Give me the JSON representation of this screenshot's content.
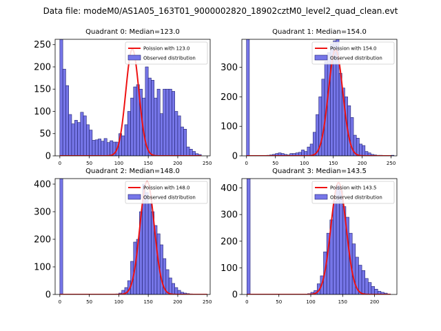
{
  "figure": {
    "title": "Data file: modeM0/AS1A05_163T01_9000002820_18902cztM0_level2_quad_clean.evt"
  },
  "colors": {
    "bar_fill": "#7676e8",
    "bar_edge": "#1f1f6e",
    "curve": "#ee1111",
    "axis": "#000000"
  },
  "chart_data": [
    {
      "type": "bar",
      "title": "Quadrant 0: Median=123.0",
      "legend": [
        "Poission with 123.0",
        "Observed distribution"
      ],
      "legend_position": "top-right",
      "xlim": [
        -8,
        255
      ],
      "ylim": [
        0,
        262
      ],
      "xticks": [
        0,
        50,
        100,
        150,
        200,
        250
      ],
      "yticks": [
        0,
        50,
        100,
        150,
        200,
        250
      ],
      "bin_width": 5,
      "bin_starts": [
        0,
        5,
        10,
        15,
        20,
        25,
        30,
        35,
        40,
        45,
        50,
        55,
        60,
        65,
        70,
        75,
        80,
        85,
        90,
        95,
        100,
        105,
        110,
        115,
        120,
        125,
        130,
        135,
        140,
        145,
        150,
        155,
        160,
        165,
        170,
        175,
        180,
        185,
        190,
        195,
        200,
        205,
        210,
        215,
        220,
        225,
        230,
        235
      ],
      "values": [
        262,
        195,
        158,
        93,
        72,
        80,
        75,
        98,
        90,
        70,
        58,
        35,
        36,
        38,
        33,
        39,
        30,
        34,
        31,
        31,
        50,
        45,
        70,
        100,
        130,
        155,
        160,
        150,
        130,
        200,
        175,
        170,
        130,
        150,
        95,
        150,
        150,
        150,
        145,
        100,
        90,
        65,
        60,
        20,
        15,
        10,
        5,
        3
      ],
      "poisson_mean": 123.0,
      "poisson_peak": 240,
      "poisson_range": [
        0,
        240
      ]
    },
    {
      "type": "bar",
      "title": "Quadrant 1: Median=154.0",
      "legend": [
        "Poission with 154.0",
        "Observed distribution"
      ],
      "legend_position": "top-right",
      "xlim": [
        -8,
        260
      ],
      "ylim": [
        0,
        395
      ],
      "xticks": [
        0,
        50,
        100,
        150,
        200,
        250
      ],
      "yticks": [
        0,
        100,
        200,
        300
      ],
      "bin_width": 5,
      "bin_starts": [
        0,
        5,
        10,
        15,
        20,
        25,
        30,
        35,
        40,
        45,
        50,
        55,
        60,
        65,
        70,
        75,
        80,
        85,
        90,
        95,
        100,
        105,
        110,
        115,
        120,
        125,
        130,
        135,
        140,
        145,
        150,
        155,
        160,
        165,
        170,
        175,
        180,
        185,
        190,
        195,
        200,
        205,
        210,
        215,
        220,
        225,
        230,
        235,
        240,
        245,
        250
      ],
      "values": [
        395,
        0,
        0,
        0,
        0,
        0,
        0,
        2,
        3,
        5,
        8,
        10,
        8,
        5,
        3,
        8,
        8,
        10,
        12,
        20,
        15,
        30,
        40,
        80,
        140,
        200,
        260,
        320,
        350,
        380,
        390,
        395,
        280,
        230,
        200,
        170,
        130,
        70,
        60,
        40,
        35,
        15,
        10,
        5,
        3,
        2,
        2,
        1,
        0,
        0,
        2
      ],
      "poisson_mean": 154.0,
      "poisson_peak": 360,
      "poisson_range": [
        0,
        250
      ]
    },
    {
      "type": "bar",
      "title": "Quadrant 2: Median=148.0",
      "legend": [
        "Poission with 148.0",
        "Observed distribution"
      ],
      "legend_position": "top-right",
      "xlim": [
        -8,
        255
      ],
      "ylim": [
        0,
        420
      ],
      "xticks": [
        0,
        50,
        100,
        150,
        200,
        250
      ],
      "yticks": [
        0,
        100,
        200,
        300,
        400
      ],
      "bin_width": 5,
      "bin_starts": [
        0,
        5,
        10,
        15,
        20,
        25,
        30,
        35,
        40,
        45,
        50,
        55,
        60,
        65,
        70,
        75,
        80,
        85,
        90,
        95,
        100,
        105,
        110,
        115,
        120,
        125,
        130,
        135,
        140,
        145,
        150,
        155,
        160,
        165,
        170,
        175,
        180,
        185,
        190,
        195,
        200,
        205,
        210,
        215,
        220,
        225,
        230,
        235,
        240,
        245
      ],
      "values": [
        420,
        0,
        0,
        0,
        0,
        0,
        0,
        0,
        0,
        0,
        0,
        0,
        0,
        0,
        0,
        0,
        0,
        0,
        0,
        2,
        5,
        15,
        25,
        50,
        120,
        190,
        200,
        300,
        400,
        370,
        330,
        300,
        250,
        220,
        180,
        130,
        90,
        60,
        40,
        25,
        15,
        8,
        5,
        3,
        2,
        0,
        0,
        0,
        0,
        0
      ],
      "poisson_mean": 148.0,
      "poisson_peak": 410,
      "poisson_range": [
        0,
        250
      ]
    },
    {
      "type": "bar",
      "title": "Quadrant 3: Median=143.5",
      "legend": [
        "Poission with 143.5",
        "Observed distribution"
      ],
      "legend_position": "top-right",
      "xlim": [
        -8,
        235
      ],
      "ylim": [
        0,
        435
      ],
      "xticks": [
        0,
        50,
        100,
        150,
        200
      ],
      "yticks": [
        0,
        100,
        200,
        300,
        400
      ],
      "bin_width": 5,
      "bin_starts": [
        0,
        5,
        10,
        15,
        20,
        25,
        30,
        35,
        40,
        45,
        50,
        55,
        60,
        65,
        70,
        75,
        80,
        85,
        90,
        95,
        100,
        105,
        110,
        115,
        120,
        125,
        130,
        135,
        140,
        145,
        150,
        155,
        160,
        165,
        170,
        175,
        180,
        185,
        190,
        195,
        200,
        205,
        210,
        215,
        220,
        225
      ],
      "values": [
        435,
        0,
        0,
        0,
        0,
        0,
        0,
        0,
        0,
        0,
        0,
        0,
        0,
        0,
        0,
        0,
        0,
        0,
        0,
        3,
        8,
        15,
        40,
        70,
        160,
        230,
        280,
        350,
        410,
        390,
        330,
        290,
        230,
        190,
        140,
        110,
        90,
        60,
        45,
        30,
        20,
        12,
        8,
        5,
        2,
        0
      ],
      "poisson_mean": 143.5,
      "poisson_peak": 420,
      "poisson_range": [
        0,
        225
      ]
    }
  ]
}
